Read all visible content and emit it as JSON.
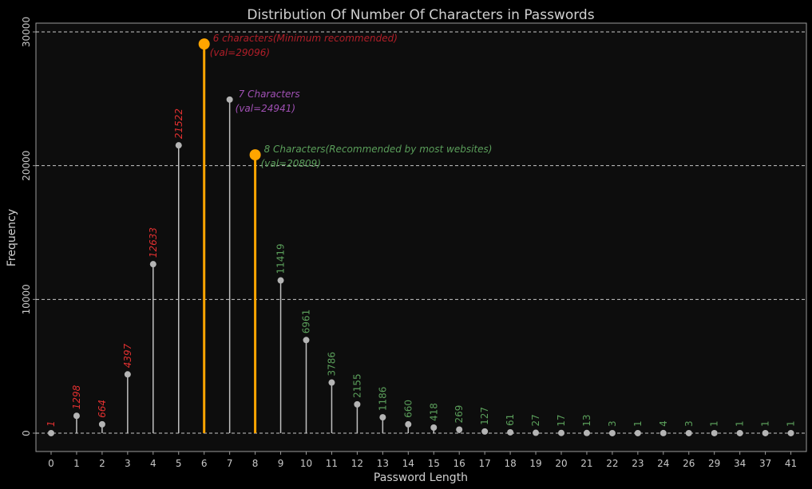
{
  "chart_data": {
    "type": "lollipop",
    "title": "Distribution Of Number Of Characters in Passwords",
    "xlabel": "Password Length",
    "ylabel": "Frequency",
    "ylim": [
      -1000,
      30500
    ],
    "yticks": [
      0,
      10000,
      20000,
      30000
    ],
    "grid": "horizontal dashed",
    "categories": [
      "0",
      "1",
      "2",
      "3",
      "4",
      "5",
      "6",
      "7",
      "8",
      "9",
      "10",
      "11",
      "12",
      "13",
      "14",
      "15",
      "16",
      "17",
      "18",
      "19",
      "20",
      "21",
      "22",
      "23",
      "24",
      "26",
      "29",
      "34",
      "37",
      "41"
    ],
    "values": [
      1,
      1298,
      664,
      4397,
      12633,
      21522,
      29096,
      24941,
      20809,
      11419,
      6961,
      3786,
      2155,
      1186,
      660,
      418,
      269,
      127,
      61,
      27,
      17,
      13,
      3,
      1,
      4,
      3,
      1,
      1,
      1,
      1
    ],
    "value_labels": [
      "1",
      "1298",
      "664",
      "4397",
      "12633",
      "21522",
      "",
      "",
      "",
      "11419",
      "6961",
      "3786",
      "2155",
      "1186",
      "660",
      "418",
      "269",
      "127",
      "61",
      "27",
      "17",
      "13",
      "3",
      "1",
      "4",
      "3",
      "1",
      "1",
      "1",
      "1"
    ],
    "highlight_categories": [
      "6",
      "8"
    ],
    "annotations": [
      {
        "category": "6",
        "line1": "6 characters(Minimum recommended)",
        "line2": "(val=29096)"
      },
      {
        "category": "7",
        "line1": "7 Characters",
        "line2": "(val=24941)"
      },
      {
        "category": "8",
        "line1": "8 Characters(Recommended by most websites)",
        "line2": "(val=20809)"
      }
    ],
    "colors": {
      "background": "#000000",
      "panel": "#0d0d0d",
      "stem": "#c0c0c0",
      "point": "#b4b4b4",
      "highlight": "#ffa500",
      "label_low": "#e03030",
      "label_high": "#5a9e5a",
      "grid": "#e8e8e8",
      "ann_6": "#b01e28",
      "ann_7": "#a050b4",
      "ann_8": "#5a9e5a"
    }
  }
}
